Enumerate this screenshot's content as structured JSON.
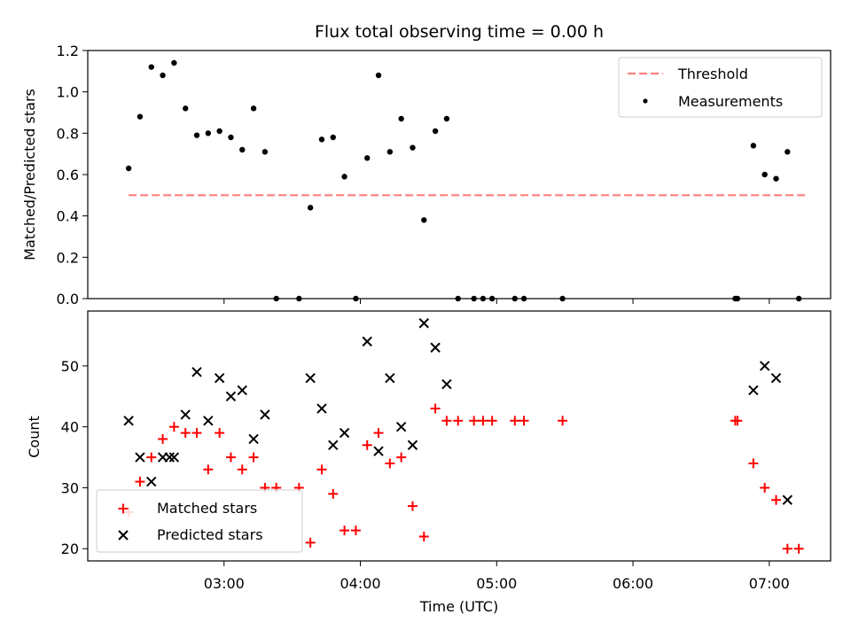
{
  "chart_data": [
    {
      "type": "scatter",
      "title": "Flux total observing time = 0.00 h",
      "xlabel": "",
      "ylabel": "Matched/Predicted stars",
      "ylim": [
        0,
        1.2
      ],
      "yticks": [
        "0.0",
        "0.2",
        "0.4",
        "0.6",
        "0.8",
        "1.0",
        "1.2"
      ],
      "legend_position": "top-right",
      "threshold": {
        "name": "Threshold",
        "value": 0.5,
        "x_start": "02:18",
        "x_end": "07:17",
        "color": "#ff7f7f"
      },
      "series": [
        {
          "name": "Measurements",
          "color": "#000000",
          "points": [
            [
              "02:18",
              0.63
            ],
            [
              "02:23",
              0.88
            ],
            [
              "02:28",
              1.12
            ],
            [
              "02:33",
              1.08
            ],
            [
              "02:38",
              1.14
            ],
            [
              "02:43",
              0.92
            ],
            [
              "02:48",
              0.79
            ],
            [
              "02:53",
              0.8
            ],
            [
              "02:58",
              0.81
            ],
            [
              "03:03",
              0.78
            ],
            [
              "03:08",
              0.72
            ],
            [
              "03:13",
              0.92
            ],
            [
              "03:18",
              0.71
            ],
            [
              "03:23",
              0.0
            ],
            [
              "03:33",
              0.0
            ],
            [
              "03:38",
              0.44
            ],
            [
              "03:43",
              0.77
            ],
            [
              "03:48",
              0.78
            ],
            [
              "03:53",
              0.59
            ],
            [
              "03:58",
              0.0
            ],
            [
              "04:03",
              0.68
            ],
            [
              "04:08",
              1.08
            ],
            [
              "04:13",
              0.71
            ],
            [
              "04:18",
              0.87
            ],
            [
              "04:23",
              0.73
            ],
            [
              "04:28",
              0.38
            ],
            [
              "04:33",
              0.81
            ],
            [
              "04:38",
              0.87
            ],
            [
              "04:43",
              0.0
            ],
            [
              "04:50",
              0.0
            ],
            [
              "04:54",
              0.0
            ],
            [
              "04:58",
              0.0
            ],
            [
              "05:08",
              0.0
            ],
            [
              "05:12",
              0.0
            ],
            [
              "05:29",
              0.0
            ],
            [
              "06:45",
              0.0
            ],
            [
              "06:46",
              0.0
            ],
            [
              "06:53",
              0.74
            ],
            [
              "06:58",
              0.6
            ],
            [
              "07:03",
              0.58
            ],
            [
              "07:08",
              0.71
            ],
            [
              "07:13",
              0.0
            ]
          ]
        }
      ]
    },
    {
      "type": "scatter",
      "title": "",
      "xlabel": "Time (UTC)",
      "ylabel": "Count",
      "xlim": [
        "02:00",
        "07:27"
      ],
      "ylim": [
        18,
        59
      ],
      "xticks": [
        "03:00",
        "04:00",
        "05:00",
        "06:00",
        "07:00"
      ],
      "yticks": [
        "20",
        "30",
        "40",
        "50"
      ],
      "legend_position": "bottom-left",
      "series": [
        {
          "name": "Matched stars",
          "color": "#ff0000",
          "marker": "plus",
          "points": [
            [
              "02:18",
              26
            ],
            [
              "02:23",
              31
            ],
            [
              "02:28",
              35
            ],
            [
              "02:33",
              38
            ],
            [
              "02:38",
              40
            ],
            [
              "02:43",
              39
            ],
            [
              "02:48",
              39
            ],
            [
              "02:53",
              33
            ],
            [
              "02:58",
              39
            ],
            [
              "03:03",
              35
            ],
            [
              "03:08",
              33
            ],
            [
              "03:13",
              35
            ],
            [
              "03:18",
              30
            ],
            [
              "03:23",
              30
            ],
            [
              "03:33",
              30
            ],
            [
              "03:38",
              21
            ],
            [
              "03:43",
              33
            ],
            [
              "03:48",
              29
            ],
            [
              "03:53",
              23
            ],
            [
              "03:58",
              23
            ],
            [
              "04:03",
              37
            ],
            [
              "04:08",
              39
            ],
            [
              "04:13",
              34
            ],
            [
              "04:18",
              35
            ],
            [
              "04:23",
              27
            ],
            [
              "04:28",
              22
            ],
            [
              "04:33",
              43
            ],
            [
              "04:38",
              41
            ],
            [
              "04:43",
              41
            ],
            [
              "04:50",
              41
            ],
            [
              "04:54",
              41
            ],
            [
              "04:58",
              41
            ],
            [
              "05:08",
              41
            ],
            [
              "05:12",
              41
            ],
            [
              "05:29",
              41
            ],
            [
              "06:45",
              41
            ],
            [
              "06:46",
              41
            ],
            [
              "06:53",
              34
            ],
            [
              "06:58",
              30
            ],
            [
              "07:03",
              28
            ],
            [
              "07:08",
              20
            ],
            [
              "07:13",
              20
            ]
          ]
        },
        {
          "name": "Predicted stars",
          "color": "#000000",
          "marker": "x",
          "points": [
            [
              "02:18",
              41
            ],
            [
              "02:23",
              35
            ],
            [
              "02:28",
              31
            ],
            [
              "02:33",
              35
            ],
            [
              "02:36",
              35
            ],
            [
              "02:38",
              35
            ],
            [
              "02:43",
              42
            ],
            [
              "02:48",
              49
            ],
            [
              "02:53",
              41
            ],
            [
              "02:58",
              48
            ],
            [
              "03:03",
              45
            ],
            [
              "03:08",
              46
            ],
            [
              "03:13",
              38
            ],
            [
              "03:18",
              42
            ],
            [
              "03:38",
              48
            ],
            [
              "03:43",
              43
            ],
            [
              "03:48",
              37
            ],
            [
              "03:53",
              39
            ],
            [
              "04:03",
              54
            ],
            [
              "04:08",
              36
            ],
            [
              "04:13",
              48
            ],
            [
              "04:18",
              40
            ],
            [
              "04:23",
              37
            ],
            [
              "04:28",
              57
            ],
            [
              "04:33",
              53
            ],
            [
              "04:38",
              47
            ],
            [
              "06:53",
              46
            ],
            [
              "06:58",
              50
            ],
            [
              "07:03",
              48
            ],
            [
              "07:08",
              28
            ]
          ]
        }
      ]
    }
  ]
}
